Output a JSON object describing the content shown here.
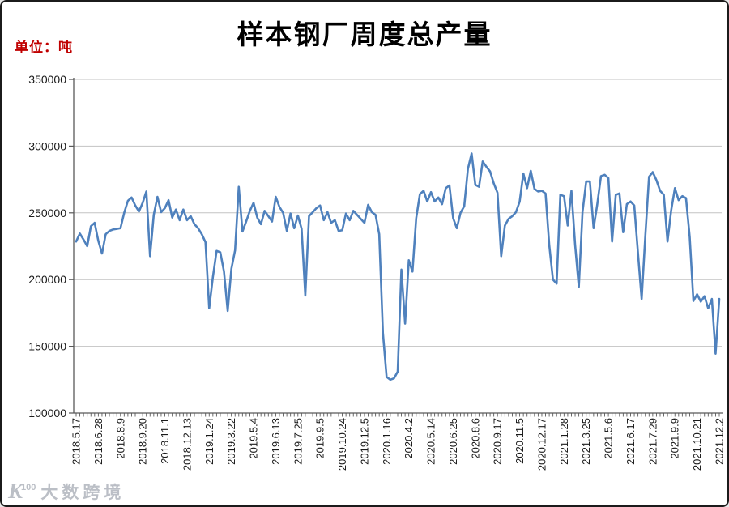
{
  "title": "样本钢厂周度总产量",
  "unit_label": "单位：吨",
  "watermark": {
    "icon_k": "K",
    "icon_100": "100",
    "text": "大数跨境"
  },
  "colors": {
    "line": "#4F81BD",
    "grid": "#c3c3c3",
    "axis": "#595959",
    "tick_label": "#1a1a1a",
    "title": "#000000",
    "unit_label": "#c00000",
    "watermark": "#b4b8c0",
    "background": "#ffffff"
  },
  "chart_data": {
    "type": "line",
    "title": "样本钢厂周度总产量",
    "unit": "吨",
    "xlabel": "",
    "ylabel": "单位：吨",
    "ylim": [
      100000,
      350000
    ],
    "yticks": [
      100000,
      150000,
      200000,
      250000,
      300000,
      350000
    ],
    "grid": "horizontal",
    "legend": "none",
    "x_label_every_n_points": 6,
    "x_tick_labels": [
      "2018.5.17",
      "2018.6.28",
      "2018.8.9",
      "2018.9.20",
      "2018.11.1",
      "2018.12.13",
      "2019.1.24",
      "2019.3.22",
      "2019.5.4",
      "2019.6.13",
      "2019.7.25",
      "2019.9.5",
      "2019.10.24",
      "2019.12.5",
      "2020.1.16",
      "2020.4.2",
      "2020.5.14",
      "2020.6.25",
      "2020.8.6",
      "2020.9.17",
      "2020.11.5",
      "2020.12.17",
      "2021.1.28",
      "2021.3.25",
      "2021.5.6",
      "2021.6.17",
      "2021.7.29",
      "2021.9.9",
      "2021.10.21",
      "2021.12.2"
    ],
    "values": [
      228500,
      234500,
      230000,
      225000,
      240000,
      242500,
      229000,
      219500,
      234000,
      236500,
      237500,
      238000,
      238500,
      250000,
      259000,
      261500,
      255500,
      251000,
      257500,
      266000,
      217500,
      248500,
      262000,
      250500,
      253500,
      259500,
      246500,
      252500,
      244500,
      252500,
      244500,
      247500,
      241500,
      238500,
      234000,
      228000,
      178500,
      202000,
      221500,
      220500,
      206000,
      176500,
      208000,
      222000,
      269500,
      236000,
      243500,
      251500,
      257500,
      246500,
      241500,
      251500,
      247500,
      243500,
      262000,
      254500,
      250000,
      236500,
      249500,
      238500,
      248000,
      238000,
      188000,
      247500,
      250500,
      253500,
      255500,
      244500,
      250500,
      242500,
      244500,
      236500,
      237000,
      249500,
      244500,
      251500,
      248500,
      245500,
      242500,
      256000,
      250500,
      248500,
      234000,
      160000,
      127000,
      125000,
      126000,
      131000,
      207500,
      167000,
      214500,
      206000,
      246000,
      264000,
      266500,
      258500,
      265500,
      258500,
      261500,
      256500,
      268500,
      270500,
      246000,
      238500,
      250000,
      255000,
      283000,
      294500,
      271000,
      269500,
      288500,
      284500,
      281000,
      272000,
      265000,
      217500,
      240500,
      245500,
      247500,
      250500,
      258500,
      279500,
      268500,
      281500,
      268000,
      266000,
      266500,
      264500,
      226000,
      200000,
      197000,
      263500,
      262500,
      240500,
      266500,
      226000,
      194500,
      250500,
      273500,
      273500,
      238500,
      256500,
      277500,
      278500,
      276000,
      228500,
      263500,
      264500,
      235500,
      256500,
      258500,
      255500,
      220000,
      185500,
      233000,
      277000,
      280500,
      274500,
      266500,
      263500,
      228500,
      252000,
      268500,
      259500,
      262500,
      261000,
      232000,
      184000,
      189000,
      183500,
      187500,
      178500,
      185500,
      144500,
      185500
    ]
  }
}
